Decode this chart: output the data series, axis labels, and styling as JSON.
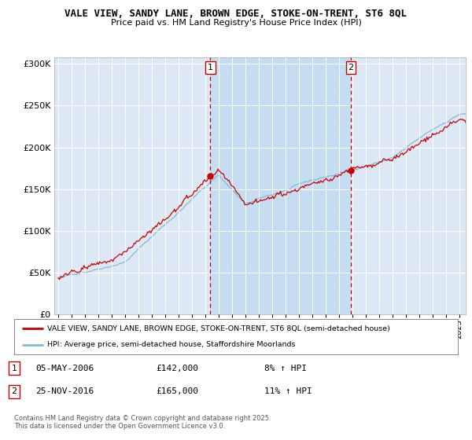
{
  "title1": "VALE VIEW, SANDY LANE, BROWN EDGE, STOKE-ON-TRENT, ST6 8QL",
  "title2": "Price paid vs. HM Land Registry's House Price Index (HPI)",
  "bg_color": "#dce9f5",
  "line1_color": "#cc0000",
  "line2_color": "#85b8d8",
  "shade_color": "#c5ddf0",
  "vline_color": "#cc0000",
  "vline1_x": 2006.37,
  "vline2_x": 2016.9,
  "legend_label1": "VALE VIEW, SANDY LANE, BROWN EDGE, STOKE-ON-TRENT, ST6 8QL (semi-detached house)",
  "legend_label2": "HPI: Average price, semi-detached house, Staffordshire Moorlands",
  "annotation1_date": "05-MAY-2006",
  "annotation1_price": "£142,000",
  "annotation1_hpi": "8% ↑ HPI",
  "annotation2_date": "25-NOV-2016",
  "annotation2_price": "£165,000",
  "annotation2_hpi": "11% ↑ HPI",
  "footer": "Contains HM Land Registry data © Crown copyright and database right 2025.\nThis data is licensed under the Open Government Licence v3.0.",
  "yticks": [
    0,
    50000,
    100000,
    150000,
    200000,
    250000,
    300000
  ],
  "ylim": [
    0,
    308000
  ],
  "xlim_start": 1994.7,
  "xlim_end": 2025.5,
  "figwidth": 6.0,
  "figheight": 5.6,
  "dpi": 100
}
